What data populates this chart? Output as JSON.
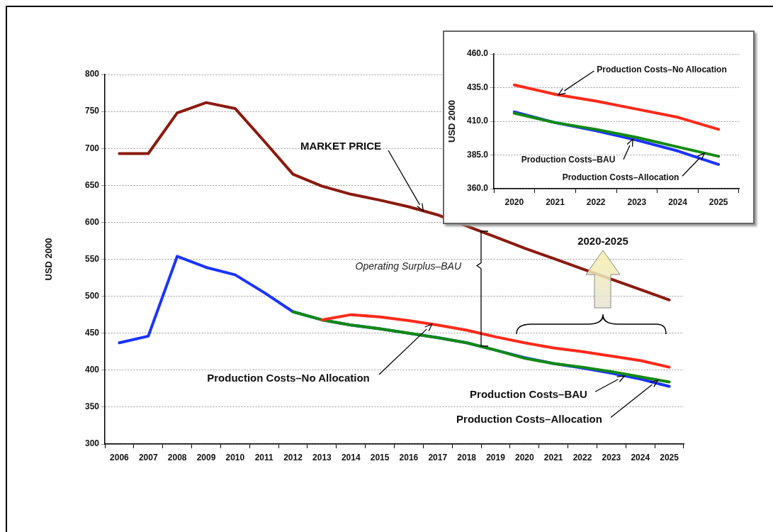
{
  "chart_data": [
    {
      "type": "line",
      "categories": [
        "2006",
        "2007",
        "2008",
        "2009",
        "2010",
        "2011",
        "2012",
        "2013",
        "2014",
        "2015",
        "2016",
        "2017",
        "2018",
        "2019",
        "2020",
        "2021",
        "2022",
        "2023",
        "2024",
        "2025"
      ],
      "ylabel": "USD 2000",
      "ylim": [
        300,
        800
      ],
      "yticks": [
        300,
        350,
        400,
        450,
        500,
        550,
        600,
        650,
        700,
        750,
        800
      ],
      "grid": "y",
      "marker": "none",
      "series": [
        {
          "name": "MARKET PRICE",
          "color": "#8b1a0e",
          "values": [
            693,
            693,
            748,
            762,
            754,
            710,
            665,
            649,
            638,
            630,
            621,
            610,
            595,
            580,
            565,
            551,
            537,
            523,
            509,
            495
          ]
        },
        {
          "name": "Production Costs–No Allocation",
          "color": "#ff2a1a",
          "values": [
            null,
            null,
            null,
            null,
            null,
            null,
            null,
            468,
            475,
            472,
            467,
            461,
            454,
            445,
            437,
            430,
            425,
            419,
            413,
            404
          ]
        },
        {
          "name": "Production Costs–Allocation",
          "color": "#128a12",
          "values": [
            null,
            null,
            null,
            null,
            null,
            null,
            479,
            468,
            461,
            456,
            450,
            444,
            437,
            427,
            416,
            409,
            404,
            398,
            391,
            384
          ]
        },
        {
          "name": "Production Costs–BAU",
          "color": "#1a33ff",
          "values": [
            437,
            446,
            554,
            539,
            529,
            505,
            479,
            468,
            461,
            456,
            450,
            444,
            437,
            427,
            417,
            409,
            403,
            396,
            388,
            378
          ]
        }
      ],
      "annotations": [
        "Operating Surplus–BAU",
        "2020-2025"
      ]
    },
    {
      "type": "line",
      "categories": [
        "2020",
        "2021",
        "2022",
        "2023",
        "2024",
        "2025"
      ],
      "ylabel": "USD 2000",
      "ylim": [
        360,
        460
      ],
      "yticks": [
        {
          "value": 360,
          "label": "360.0"
        },
        {
          "value": 385,
          "label": "385.0"
        },
        {
          "value": 410,
          "label": "410.0"
        },
        {
          "value": 435,
          "label": "435.0"
        },
        {
          "value": 460,
          "label": "460.0"
        }
      ],
      "grid": "y",
      "marker": "none",
      "series": [
        {
          "name": "Production Costs–No Allocation",
          "color": "#ff2a1a",
          "values": [
            437,
            430,
            425,
            419,
            413,
            404
          ]
        },
        {
          "name": "Production Costs–Allocation",
          "color": "#128a12",
          "values": [
            416,
            409,
            404,
            398,
            391,
            384
          ]
        },
        {
          "name": "Production Costs–BAU",
          "color": "#1a33ff",
          "values": [
            417,
            409,
            403,
            396,
            388,
            378
          ]
        }
      ]
    }
  ]
}
